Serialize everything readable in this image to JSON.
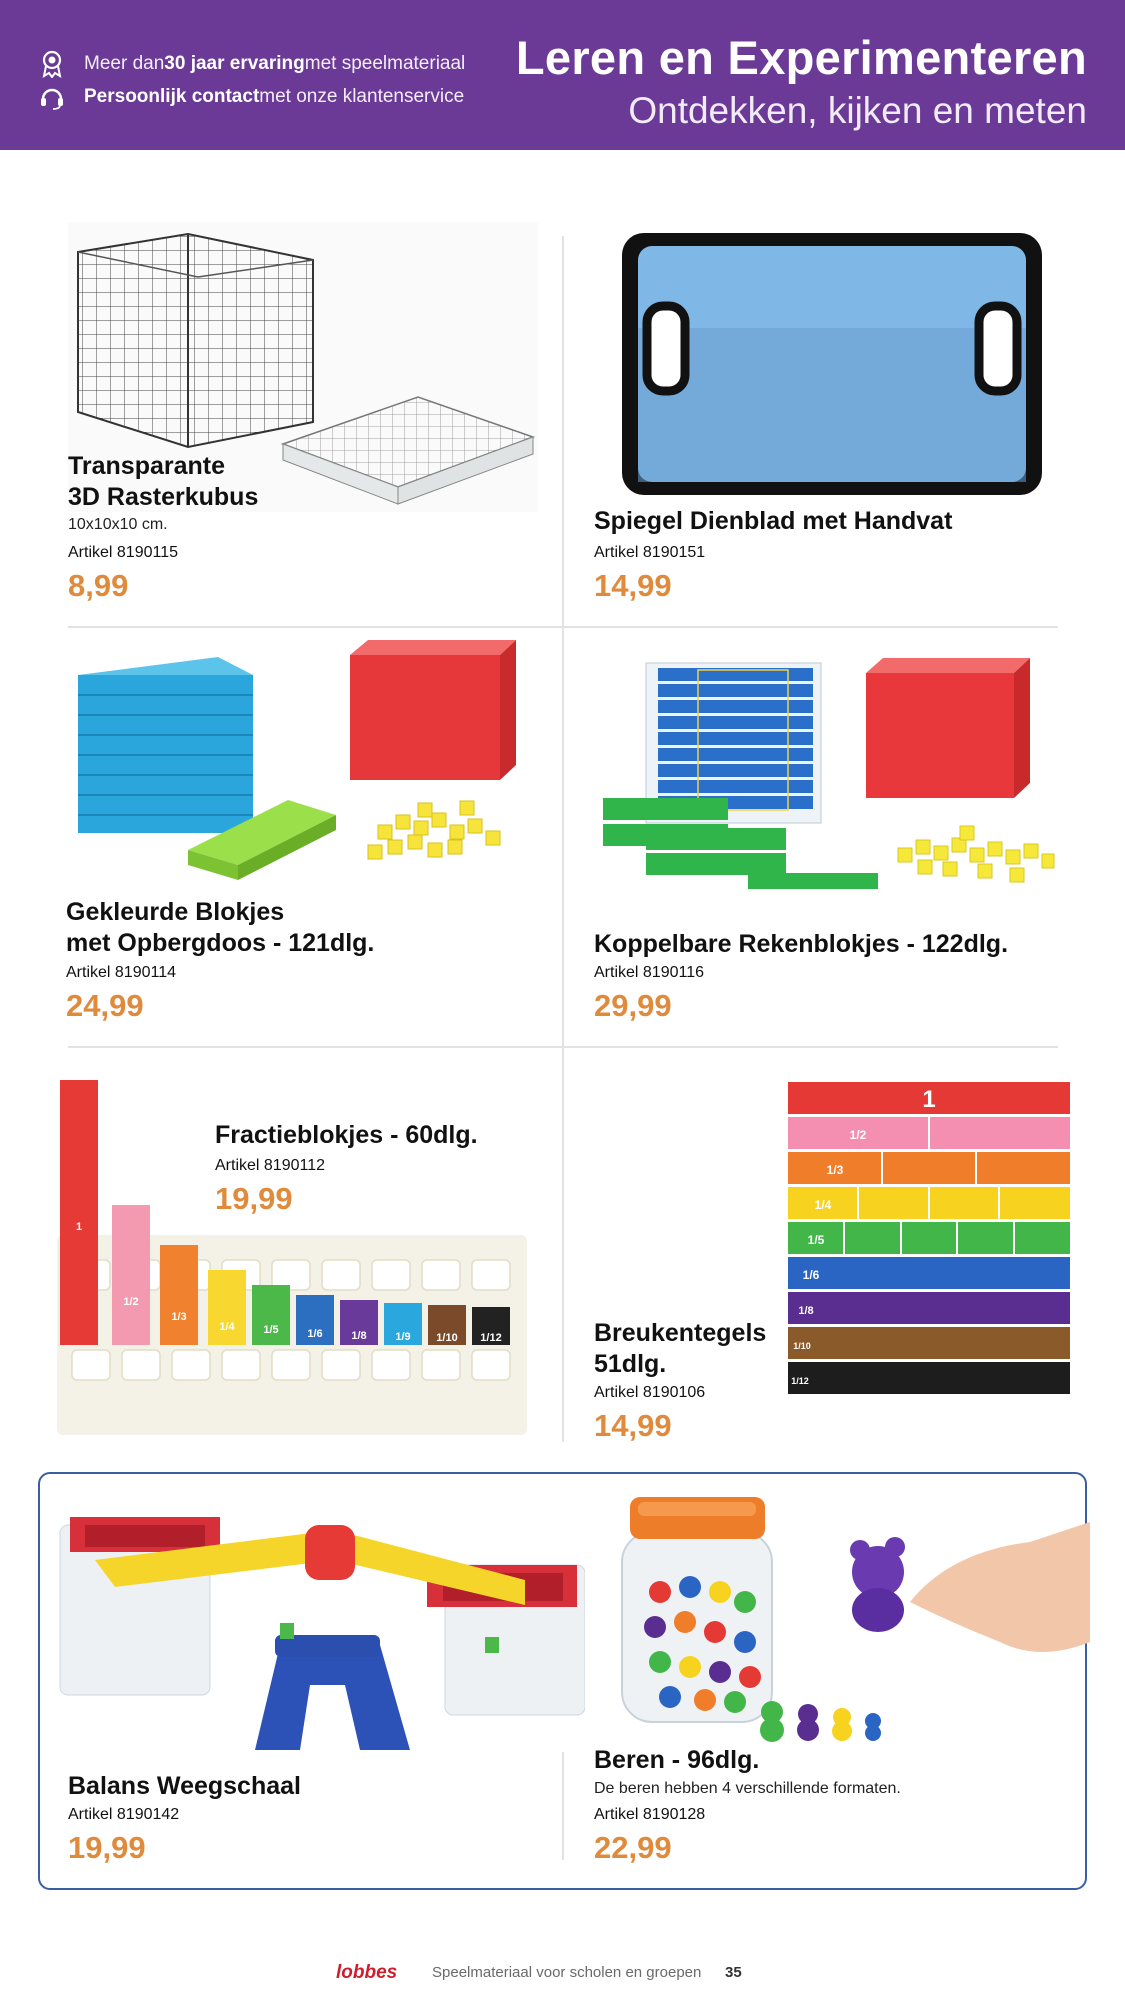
{
  "header": {
    "usp1": {
      "pre": "Meer dan ",
      "bold": "30 jaar ervaring",
      "post": " met speelmateriaal"
    },
    "usp2": {
      "bold": "Persoonlijk contact",
      "post": " met onze klantenservice"
    },
    "title": "Leren en Experimenteren",
    "subtitle": "Ontdekken, kijken en meten"
  },
  "products": {
    "rasterkubus": {
      "name_l1": "Transparante",
      "name_l2": "3D Rasterkubus",
      "desc": "10x10x10 cm.",
      "article": "Artikel 8190115",
      "price": "8,99"
    },
    "dienblad": {
      "name": "Spiegel Dienblad met Handvat",
      "article": "Artikel 8190151",
      "price": "14,99"
    },
    "gekleurde": {
      "name_l1": "Gekleurde Blokjes",
      "name_l2": "met Opbergdoos - 121dlg.",
      "article": "Artikel 8190114",
      "price": "24,99"
    },
    "koppelbare": {
      "name": "Koppelbare Rekenblokjes - 122dlg.",
      "article": "Artikel 8190116",
      "price": "29,99"
    },
    "fractie": {
      "name": "Fractieblokjes - 60dlg.",
      "article": "Artikel 8190112",
      "price": "19,99"
    },
    "breuken": {
      "name_l1": "Breukentegels",
      "name_l2": "51dlg.",
      "article": "Artikel 8190106",
      "price": "14,99"
    },
    "balans": {
      "name": "Balans Weegschaal",
      "article": "Artikel 8190142",
      "price": "19,99"
    },
    "beren": {
      "name": "Beren - 96dlg.",
      "desc": "De beren hebben 4 verschillende formaten.",
      "article": "Artikel 8190128",
      "price": "22,99"
    }
  },
  "images": {
    "fraction_blocks": [
      "1",
      "1/2",
      "1/3",
      "1/4",
      "1/5",
      "1/6",
      "1/8",
      "1/9",
      "1/10",
      "1/12"
    ],
    "fraction_tiles": [
      "1",
      "1/2",
      "1/3",
      "1/4",
      "1/5",
      "1/6",
      "1/8",
      "1/10",
      "1/12"
    ]
  },
  "footer": {
    "brand": "lobbes",
    "tagline": "Speelmateriaal voor scholen en groepen",
    "page": "35"
  },
  "colors": {
    "header": "#6b3a96",
    "price": "#e08a3c",
    "frame": "#3a5fa0"
  }
}
